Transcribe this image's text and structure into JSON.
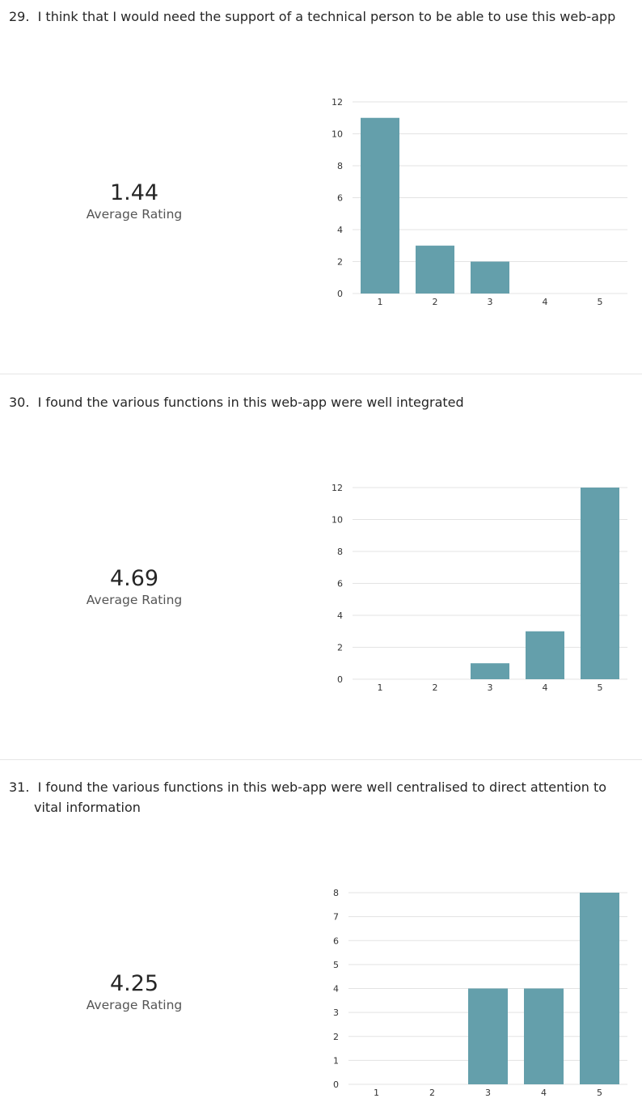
{
  "questions": [
    {
      "number": "29.",
      "text": "I think that I would need the support of a technical person to be able to use this web-app",
      "average": "1.44",
      "average_label": "Average Rating"
    },
    {
      "number": "30.",
      "text": "I found the various functions in this web-app were well integrated",
      "average": "4.69",
      "average_label": "Average Rating"
    },
    {
      "number": "31.",
      "text": "I found the various functions in this web-app were well centralised to direct attention to vital information",
      "average": "4.25",
      "average_label": "Average Rating"
    }
  ],
  "chart_data": [
    {
      "type": "bar",
      "categories": [
        "1",
        "2",
        "3",
        "4",
        "5"
      ],
      "values": [
        11,
        3,
        2,
        0,
        0
      ],
      "ylim": [
        0,
        12
      ],
      "yticks": [
        0,
        2,
        4,
        6,
        8,
        10,
        12
      ],
      "bar_color": "#649fab",
      "grid": true
    },
    {
      "type": "bar",
      "categories": [
        "1",
        "2",
        "3",
        "4",
        "5"
      ],
      "values": [
        0,
        0,
        1,
        3,
        12
      ],
      "ylim": [
        0,
        12
      ],
      "yticks": [
        0,
        2,
        4,
        6,
        8,
        10,
        12
      ],
      "bar_color": "#649fab",
      "grid": true
    },
    {
      "type": "bar",
      "categories": [
        "1",
        "2",
        "3",
        "4",
        "5"
      ],
      "values": [
        0,
        0,
        4,
        4,
        8
      ],
      "ylim": [
        0,
        8
      ],
      "yticks": [
        0,
        1,
        2,
        3,
        4,
        5,
        6,
        7,
        8
      ],
      "bar_color": "#649fab",
      "grid": true
    }
  ]
}
